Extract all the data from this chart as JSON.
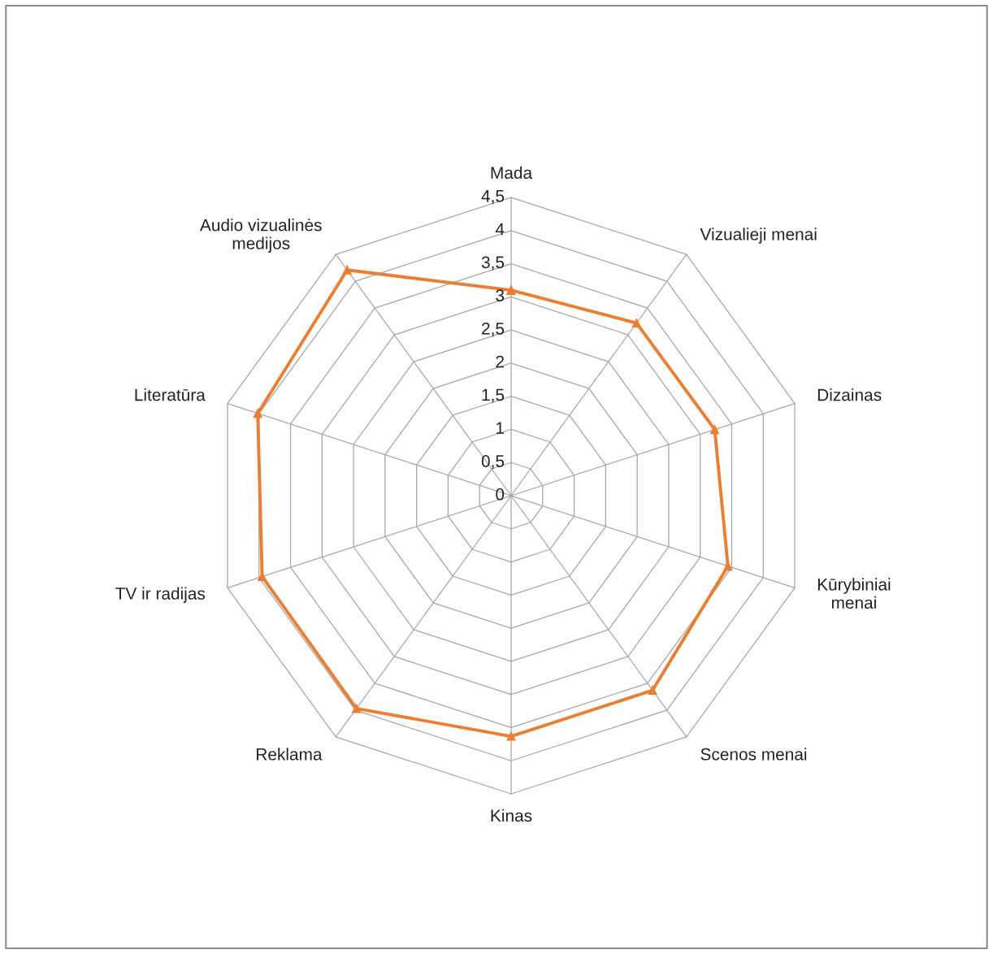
{
  "chart_data": {
    "type": "radar",
    "categories": [
      "Mada",
      "Vizualieji menai",
      "Dizainas",
      "Kūrybiniai\nmenai",
      "Scenos menai",
      "Kinas",
      "Reklama",
      "TV ir radijas",
      "Literatūra",
      "Audio vizualinės\nmedijos"
    ],
    "series": [
      {
        "color": "#ed7d31",
        "values": [
          3.1,
          3.22,
          3.23,
          3.44,
          3.63,
          3.63,
          3.97,
          3.95,
          4.02,
          4.21
        ]
      }
    ],
    "ylim": [
      0,
      4.5
    ],
    "yticks": [
      {
        "value": 0,
        "label": "0"
      },
      {
        "value": 0.5,
        "label": "0,5"
      },
      {
        "value": 1,
        "label": "1"
      },
      {
        "value": 1.5,
        "label": "1,5"
      },
      {
        "value": 2,
        "label": "2"
      },
      {
        "value": 2.5,
        "label": "2,5"
      },
      {
        "value": 3,
        "label": "3"
      },
      {
        "value": 3.5,
        "label": "3,5"
      },
      {
        "value": 4,
        "label": "4"
      },
      {
        "value": 4.5,
        "label": "4,5"
      }
    ],
    "grid": true,
    "marker": "triangle",
    "line_style": "solid",
    "legend": false
  }
}
